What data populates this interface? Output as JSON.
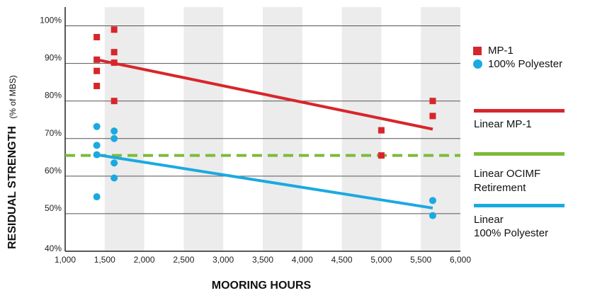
{
  "chart_data": {
    "type": "scatter",
    "title": "",
    "ylabel_main": "RESIDUAL STRENGTH",
    "ylabel_sub": "(% of MBS)",
    "xlabel": "MOORING HOURS",
    "xlim": [
      1000,
      6000
    ],
    "ylim": [
      40,
      105
    ],
    "x_ticks": [
      1000,
      1500,
      2000,
      2500,
      3000,
      3500,
      4000,
      4500,
      5000,
      5500,
      6000
    ],
    "x_tick_labels": [
      "1,000",
      "1,500",
      "2,000",
      "2,500",
      "3,000",
      "3,500",
      "4,000",
      "4,500",
      "5,000",
      "5,500",
      "6,000"
    ],
    "y_ticks": [
      40,
      50,
      60,
      70,
      80,
      90,
      100
    ],
    "y_tick_labels": [
      "40%",
      "50%",
      "60%",
      "70%",
      "80%",
      "90%",
      "100%"
    ],
    "shaded_bands": [
      [
        1500,
        2000
      ],
      [
        2500,
        3000
      ],
      [
        3500,
        4000
      ],
      [
        4500,
        5000
      ],
      [
        5500,
        6000
      ]
    ],
    "grid": "horizontal",
    "legend_position": "right",
    "series": [
      {
        "name": "MP-1",
        "kind": "scatter",
        "marker": "square",
        "color": "#d7262b",
        "points": [
          [
            1400,
            97
          ],
          [
            1400,
            91
          ],
          [
            1400,
            88
          ],
          [
            1400,
            84
          ],
          [
            1620,
            99
          ],
          [
            1620,
            93
          ],
          [
            1620,
            90.2
          ],
          [
            1620,
            80
          ],
          [
            5000,
            72.2
          ],
          [
            5000,
            65.5
          ],
          [
            5650,
            80
          ],
          [
            5650,
            76
          ]
        ]
      },
      {
        "name": "100% Polyester",
        "kind": "scatter",
        "marker": "circle",
        "color": "#1ba9e1",
        "points": [
          [
            1400,
            73.2
          ],
          [
            1400,
            68.2
          ],
          [
            1400,
            65.7
          ],
          [
            1400,
            54.5
          ],
          [
            1620,
            72
          ],
          [
            1620,
            70
          ],
          [
            1620,
            63.5
          ],
          [
            1620,
            59.5
          ],
          [
            5650,
            53.5
          ],
          [
            5650,
            49.5
          ]
        ]
      },
      {
        "name": "Linear MP-1",
        "kind": "line",
        "color": "#d7262b",
        "dash": false,
        "points": [
          [
            1400,
            91
          ],
          [
            5650,
            72.5
          ]
        ]
      },
      {
        "name": "Linear OCIMF Retirement",
        "kind": "line",
        "color": "#7cbb3a",
        "dash": true,
        "points": [
          [
            1000,
            65.5
          ],
          [
            6000,
            65.5
          ]
        ]
      },
      {
        "name": "Linear 100% Polyester",
        "kind": "line",
        "color": "#1ba9e1",
        "dash": false,
        "points": [
          [
            1400,
            65.7
          ],
          [
            5650,
            51.5
          ]
        ]
      }
    ]
  },
  "legend": {
    "mp1": "MP-1",
    "poly": "100% Polyester",
    "lin_mp1": "Linear MP-1",
    "lin_ocimf_1": "Linear OCIMF",
    "lin_ocimf_2": "Retirement",
    "lin_poly_1": "Linear",
    "lin_poly_2": "100% Polyester"
  },
  "colors": {
    "band": "#ececec",
    "grid": "#555555",
    "axis": "#222222"
  }
}
